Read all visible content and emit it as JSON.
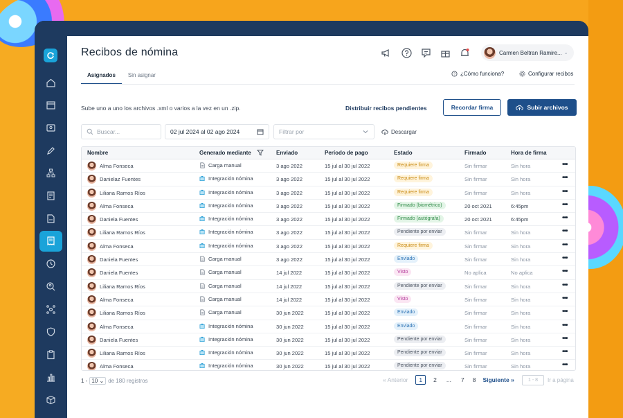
{
  "colors": {
    "background": "#f7a51c",
    "sidebar": "#1e3a5f",
    "accent": "#1aa3d9",
    "primary": "#1e4f8a"
  },
  "sidebar": {
    "logo_icon": "refresh-logo-icon",
    "items": [
      {
        "icon": "home-icon",
        "active": false
      },
      {
        "icon": "calendar-icon",
        "active": false
      },
      {
        "icon": "id-card-icon",
        "active": false
      },
      {
        "icon": "pen-icon",
        "active": false
      },
      {
        "icon": "org-chart-icon",
        "active": false
      },
      {
        "icon": "document-list-icon",
        "active": false
      },
      {
        "icon": "document-icon",
        "active": false
      },
      {
        "icon": "receipt-icon",
        "active": true
      },
      {
        "icon": "clock-icon",
        "active": false
      },
      {
        "icon": "search-person-icon",
        "active": false
      },
      {
        "icon": "network-icon",
        "active": false
      },
      {
        "icon": "shield-icon",
        "active": false
      },
      {
        "icon": "clipboard-icon",
        "active": false
      },
      {
        "icon": "bar-chart-icon",
        "active": false
      },
      {
        "icon": "box-icon",
        "active": false
      }
    ]
  },
  "header": {
    "title": "Recibos de nómina",
    "icons": [
      "megaphone-icon",
      "help-icon",
      "chat-icon",
      "gift-icon",
      "bell-icon"
    ],
    "user_name": "Carmen Beltran Ramire..."
  },
  "tabs": [
    {
      "label": "Asignados",
      "active": true
    },
    {
      "label": "Sin asignar",
      "active": false
    }
  ],
  "links": {
    "how_it_works": "¿Cómo funciona?",
    "configure": "Configurar recibos"
  },
  "actions": {
    "subtitle": "Sube uno a uno los archivos .xml o varios a la vez en un .zip.",
    "distribute": "Distribuir recibos pendientes",
    "remind": "Recordar firma",
    "upload": "Subir archivos"
  },
  "filters": {
    "search_placeholder": "Buscar...",
    "date_range": "02 jul 2024 al 02 ago 2024",
    "filter_placeholder": "Filtrar por",
    "download": "Descargar"
  },
  "table": {
    "columns": [
      "Nombre",
      "Generado mediante",
      "Enviado",
      "Período de pago",
      "Estado",
      "Firmado",
      "Hora de firma"
    ],
    "rows": [
      {
        "name": "Alma Fonseca",
        "gen": "Carga manual",
        "gen_icon": "file-icon",
        "sent": "3 ago 2022",
        "period": "15 jul al 30 jul 2022",
        "status": "Requiere firma",
        "status_type": "warn",
        "signed": "Sin firmar",
        "time": "Sin hora"
      },
      {
        "name": "Danielaz Fuentes",
        "gen": "Integración nómina",
        "gen_icon": "integration-icon",
        "sent": "3 ago 2022",
        "period": "15 jul al 30 jul 2022",
        "status": "Requiere firma",
        "status_type": "warn",
        "signed": "Sin firmar",
        "time": "Sin hora"
      },
      {
        "name": "Liliana Ramos Ríos",
        "gen": "Integración nómina",
        "gen_icon": "integration-icon",
        "sent": "3 ago 2022",
        "period": "15 jul al 30 jul 2022",
        "status": "Requiere firma",
        "status_type": "warn",
        "signed": "Sin firmar",
        "time": "Sin hora"
      },
      {
        "name": "Alma Fonseca",
        "gen": "Integración nómina",
        "gen_icon": "integration-icon",
        "sent": "3 ago 2022",
        "period": "15 jul al 30 jul 2022",
        "status": "Firmado (biométrico)",
        "status_type": "ok",
        "signed": "20 oct 2021",
        "time": "6:45pm"
      },
      {
        "name": "Daniela Fuentes",
        "gen": "Integración nómina",
        "gen_icon": "integration-icon",
        "sent": "3 ago 2022",
        "period": "15 jul al 30 jul 2022",
        "status": "Firmado (autógrafa)",
        "status_type": "ok",
        "signed": "20 oct 2021",
        "time": "6:45pm"
      },
      {
        "name": "Liliana Ramos Ríos",
        "gen": "Integración nómina",
        "gen_icon": "integration-icon",
        "sent": "3 ago 2022",
        "period": "15 jul al 30 jul 2022",
        "status": "Pendiente por enviar",
        "status_type": "pending",
        "signed": "Sin firmar",
        "time": "Sin hora"
      },
      {
        "name": "Alma Fonseca",
        "gen": "Integración nómina",
        "gen_icon": "integration-icon",
        "sent": "3 ago 2022",
        "period": "15 jul al 30 jul 2022",
        "status": "Requiere firma",
        "status_type": "warn",
        "signed": "Sin firmar",
        "time": "Sin hora"
      },
      {
        "name": "Daniela Fuentes",
        "gen": "Carga manual",
        "gen_icon": "file-icon",
        "sent": "3 ago 2022",
        "period": "15 jul al 30 jul 2022",
        "status": "Enviado",
        "status_type": "sent",
        "signed": "Sin firmar",
        "time": "Sin hora"
      },
      {
        "name": "Daniela Fuentes",
        "gen": "Carga manual",
        "gen_icon": "file-icon",
        "sent": "14 jul 2022",
        "period": "15 jul al 30 jul 2022",
        "status": "Visto",
        "status_type": "seen",
        "signed": "No aplica",
        "time": "No aplica"
      },
      {
        "name": "Liliana Ramos Ríos",
        "gen": "Carga manual",
        "gen_icon": "file-icon",
        "sent": "14 jul 2022",
        "period": "15 jul al 30 jul 2022",
        "status": "Pendiente por enviar",
        "status_type": "pending",
        "signed": "Sin firmar",
        "time": "Sin hora"
      },
      {
        "name": "Alma Fonseca",
        "gen": "Carga manual",
        "gen_icon": "file-icon",
        "sent": "14 jul 2022",
        "period": "15 jul al 30 jul 2022",
        "status": "Visto",
        "status_type": "seen",
        "signed": "Sin firmar",
        "time": "Sin hora"
      },
      {
        "name": "Liliana Ramos Ríos",
        "gen": "Carga manual",
        "gen_icon": "file-icon",
        "sent": "30 jun 2022",
        "period": "15 jul al 30 jul 2022",
        "status": "Enviado",
        "status_type": "sent",
        "signed": "Sin firmar",
        "time": "Sin hora"
      },
      {
        "name": "Alma Fonseca",
        "gen": "Integración nómina",
        "gen_icon": "integration-icon",
        "sent": "30 jun 2022",
        "period": "15 jul al 30 jul 2022",
        "status": "Enviado",
        "status_type": "sent",
        "signed": "Sin firmar",
        "time": "Sin hora"
      },
      {
        "name": "Daniela Fuentes",
        "gen": "Integración nómina",
        "gen_icon": "integration-icon",
        "sent": "30 jun 2022",
        "period": "15 jul al 30 jul 2022",
        "status": "Pendiente por enviar",
        "status_type": "pending",
        "signed": "Sin firmar",
        "time": "Sin hora"
      },
      {
        "name": "Liliana Ramos Ríos",
        "gen": "Integración nómina",
        "gen_icon": "integration-icon",
        "sent": "30 jun 2022",
        "period": "15 jul al 30 jul 2022",
        "status": "Pendiente por enviar",
        "status_type": "pending",
        "signed": "Sin firmar",
        "time": "Sin hora"
      },
      {
        "name": "Alma Fonseca",
        "gen": "Integración nómina",
        "gen_icon": "integration-icon",
        "sent": "30 jun 2022",
        "period": "15 jul al 30 jul 2022",
        "status": "Pendiente por enviar",
        "status_type": "pending",
        "signed": "Sin firmar",
        "time": "Sin hora"
      }
    ],
    "more_label": "•••"
  },
  "status_styles": {
    "warn": {
      "bg": "#fff4dc",
      "fg": "#c98a12"
    },
    "ok": {
      "bg": "#e3f5e7",
      "fg": "#2f8a47"
    },
    "pending": {
      "bg": "#eceef2",
      "fg": "#4a5360"
    },
    "sent": {
      "bg": "#e4f1fb",
      "fg": "#2f74b5"
    },
    "seen": {
      "bg": "#fbe6f3",
      "fg": "#b2389a"
    }
  },
  "footer": {
    "range_start": "1 -",
    "per_page": "10",
    "total": "de 180 registros",
    "prev": "Anterior",
    "pages": [
      "1",
      "2",
      "...",
      "7",
      "8"
    ],
    "current_page": "1",
    "next": "Siguiente",
    "goto_placeholder": "1 - 8",
    "goto_label": "Ir a página"
  }
}
